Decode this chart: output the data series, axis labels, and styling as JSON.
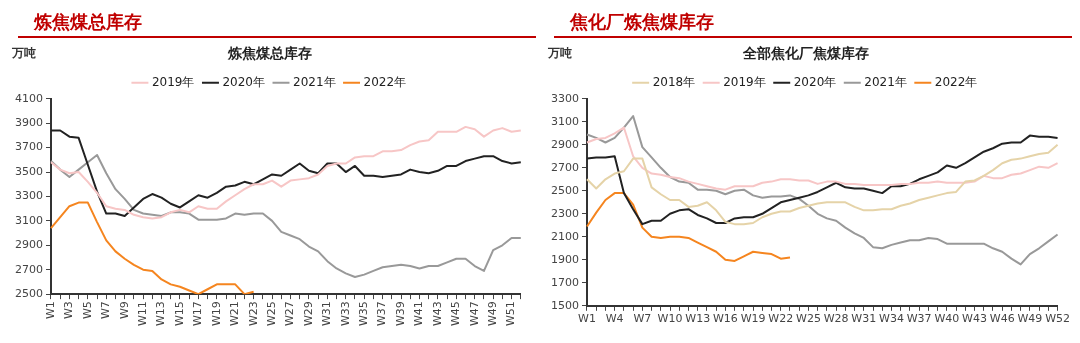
{
  "chart_data": [
    {
      "type": "line",
      "title": "炼焦煤总库存",
      "subtitle": "炼焦煤总库存",
      "ylabel": "万吨",
      "categories": [
        "W1",
        null,
        "W3",
        null,
        "W5",
        null,
        "W7",
        null,
        "W9",
        null,
        "W11",
        null,
        "W13",
        null,
        "W15",
        null,
        "W17",
        null,
        "W19",
        null,
        "W21",
        null,
        "W23",
        null,
        "W25",
        null,
        "W27",
        null,
        "W29",
        null,
        "W31",
        null,
        "W33",
        null,
        "W35",
        null,
        "W37",
        null,
        "W39",
        null,
        "W41",
        null,
        "W43",
        null,
        "W45",
        null,
        "W47",
        null,
        "W49",
        null,
        "W51",
        null
      ],
      "ylim": [
        2500,
        4100
      ],
      "yticks": [
        2500,
        2700,
        2900,
        3100,
        3300,
        3500,
        3700,
        3900,
        4100
      ],
      "legend": "top",
      "marker": "none",
      "series": [
        {
          "name": "2019年",
          "color": "#f7c6c6",
          "values": [
            3580,
            3520,
            3490,
            3500,
            3420,
            3330,
            3220,
            3200,
            3190,
            3150,
            3130,
            3120,
            3130,
            3170,
            3190,
            3170,
            3220,
            3200,
            3200,
            3260,
            3310,
            3360,
            3400,
            3400,
            3430,
            3380,
            3430,
            3440,
            3450,
            3480,
            3550,
            3570,
            3570,
            3620,
            3630,
            3630,
            3670,
            3670,
            3680,
            3720,
            3750,
            3760,
            3830,
            3830,
            3830,
            3870,
            3850,
            3790,
            3840,
            3860,
            3830,
            3840
          ]
        },
        {
          "name": "2020年",
          "color": "#222222",
          "values": [
            3840,
            3840,
            3790,
            3780,
            3560,
            3340,
            3160,
            3160,
            3140,
            3210,
            3280,
            3320,
            3290,
            3240,
            3210,
            3260,
            3310,
            3290,
            3330,
            3380,
            3390,
            3420,
            3400,
            3440,
            3480,
            3470,
            3520,
            3570,
            3510,
            3490,
            3570,
            3570,
            3500,
            3550,
            3470,
            3470,
            3460,
            3470,
            3480,
            3520,
            3500,
            3490,
            3510,
            3550,
            3550,
            3590,
            3610,
            3630,
            3630,
            3590,
            3570,
            3580
          ]
        },
        {
          "name": "2021年",
          "color": "#999999",
          "values": [
            3590,
            3520,
            3460,
            3520,
            3580,
            3640,
            3490,
            3360,
            3280,
            3190,
            3160,
            3150,
            3140,
            3170,
            3170,
            3160,
            3110,
            3110,
            3110,
            3120,
            3160,
            3150,
            3160,
            3160,
            3100,
            3010,
            2980,
            2950,
            2890,
            2850,
            2770,
            2710,
            2670,
            2640,
            2660,
            2690,
            2720,
            2730,
            2740,
            2730,
            2710,
            2730,
            2730,
            2760,
            2790,
            2790,
            2730,
            2690,
            2860,
            2900,
            2960,
            2960
          ]
        },
        {
          "name": "2022年",
          "color": "#f5851f",
          "values": [
            3040,
            3130,
            3220,
            3250,
            3250,
            3090,
            2940,
            2850,
            2790,
            2740,
            2700,
            2690,
            2620,
            2580,
            2560,
            2530,
            2500,
            2540,
            2580,
            2580,
            2580,
            2500,
            2520,
            null,
            null,
            null,
            null,
            null,
            null,
            null,
            null,
            null,
            null,
            null,
            null,
            null,
            null,
            null,
            null,
            null,
            null,
            null,
            null,
            null,
            null,
            null,
            null,
            null,
            null,
            null,
            null,
            null
          ]
        }
      ]
    },
    {
      "type": "line",
      "title": "焦化厂炼焦煤库存",
      "subtitle": "全部焦化厂焦煤库存",
      "ylabel": "万吨",
      "categories": [
        "W1",
        null,
        null,
        "W4",
        null,
        null,
        "W7",
        null,
        null,
        "W10",
        null,
        null,
        "W13",
        null,
        null,
        "W16",
        null,
        null,
        "W19",
        null,
        null,
        "W22",
        null,
        null,
        "W25",
        null,
        null,
        "W28",
        null,
        null,
        "W31",
        null,
        null,
        "W34",
        null,
        null,
        "W37",
        null,
        null,
        "W40",
        null,
        null,
        "W43",
        null,
        null,
        "W46",
        null,
        null,
        "W49",
        null,
        null,
        "W52"
      ],
      "ylim": [
        1500,
        3300
      ],
      "yticks": [
        1500,
        1700,
        1900,
        2100,
        2300,
        2500,
        2700,
        2900,
        3100,
        3300
      ],
      "legend": "top",
      "marker": "none",
      "series": [
        {
          "name": "2018年",
          "color": "#e5d3a8",
          "values": [
            2600,
            2520,
            2600,
            2650,
            2670,
            2780,
            2780,
            2530,
            2470,
            2420,
            2420,
            2360,
            2370,
            2400,
            2330,
            2230,
            2210,
            2210,
            2220,
            2270,
            2300,
            2320,
            2320,
            2350,
            2370,
            2390,
            2400,
            2400,
            2400,
            2360,
            2330,
            2330,
            2340,
            2340,
            2370,
            2390,
            2420,
            2440,
            2460,
            2480,
            2490,
            2580,
            2590,
            2630,
            2680,
            2740,
            2770,
            2780,
            2800,
            2820,
            2830,
            2900
          ]
        },
        {
          "name": "2019年",
          "color": "#f7c6c6",
          "values": [
            2920,
            2950,
            2960,
            3000,
            3050,
            2800,
            2700,
            2650,
            2640,
            2620,
            2610,
            2580,
            2560,
            2540,
            2520,
            2510,
            2540,
            2540,
            2540,
            2570,
            2580,
            2600,
            2600,
            2590,
            2590,
            2560,
            2580,
            2580,
            2560,
            2560,
            2550,
            2550,
            2550,
            2550,
            2560,
            2560,
            2570,
            2570,
            2580,
            2570,
            2570,
            2570,
            2580,
            2630,
            2610,
            2610,
            2640,
            2650,
            2680,
            2710,
            2700,
            2740
          ]
        },
        {
          "name": "2020年",
          "color": "#222222",
          "values": [
            2780,
            2790,
            2790,
            2800,
            2480,
            2340,
            2210,
            2240,
            2240,
            2300,
            2330,
            2340,
            2290,
            2260,
            2220,
            2220,
            2260,
            2270,
            2270,
            2300,
            2350,
            2400,
            2420,
            2440,
            2460,
            2490,
            2530,
            2570,
            2530,
            2520,
            2520,
            2500,
            2480,
            2540,
            2540,
            2560,
            2600,
            2630,
            2660,
            2720,
            2700,
            2740,
            2790,
            2840,
            2870,
            2910,
            2920,
            2920,
            2980,
            2970,
            2970,
            2960
          ]
        },
        {
          "name": "2021年",
          "color": "#999999",
          "values": [
            2990,
            2960,
            2920,
            2960,
            3050,
            3150,
            2880,
            2790,
            2700,
            2620,
            2580,
            2570,
            2510,
            2510,
            2500,
            2470,
            2500,
            2510,
            2460,
            2440,
            2450,
            2450,
            2460,
            2430,
            2370,
            2300,
            2260,
            2240,
            2180,
            2130,
            2090,
            2010,
            2000,
            2030,
            2050,
            2070,
            2070,
            2090,
            2080,
            2040,
            2040,
            2040,
            2040,
            2040,
            2000,
            1970,
            1910,
            1860,
            1950,
            2000,
            2060,
            2120
          ]
        },
        {
          "name": "2022年",
          "color": "#f5851f",
          "values": [
            2190,
            2310,
            2420,
            2480,
            2480,
            2380,
            2180,
            2100,
            2090,
            2100,
            2100,
            2090,
            2050,
            2010,
            1970,
            1900,
            1890,
            1930,
            1970,
            1960,
            1950,
            1910,
            1920,
            null,
            null,
            null,
            null,
            null,
            null,
            null,
            null,
            null,
            null,
            null,
            null,
            null,
            null,
            null,
            null,
            null,
            null,
            null,
            null,
            null,
            null,
            null,
            null,
            null,
            null,
            null,
            null,
            null
          ]
        }
      ]
    }
  ]
}
